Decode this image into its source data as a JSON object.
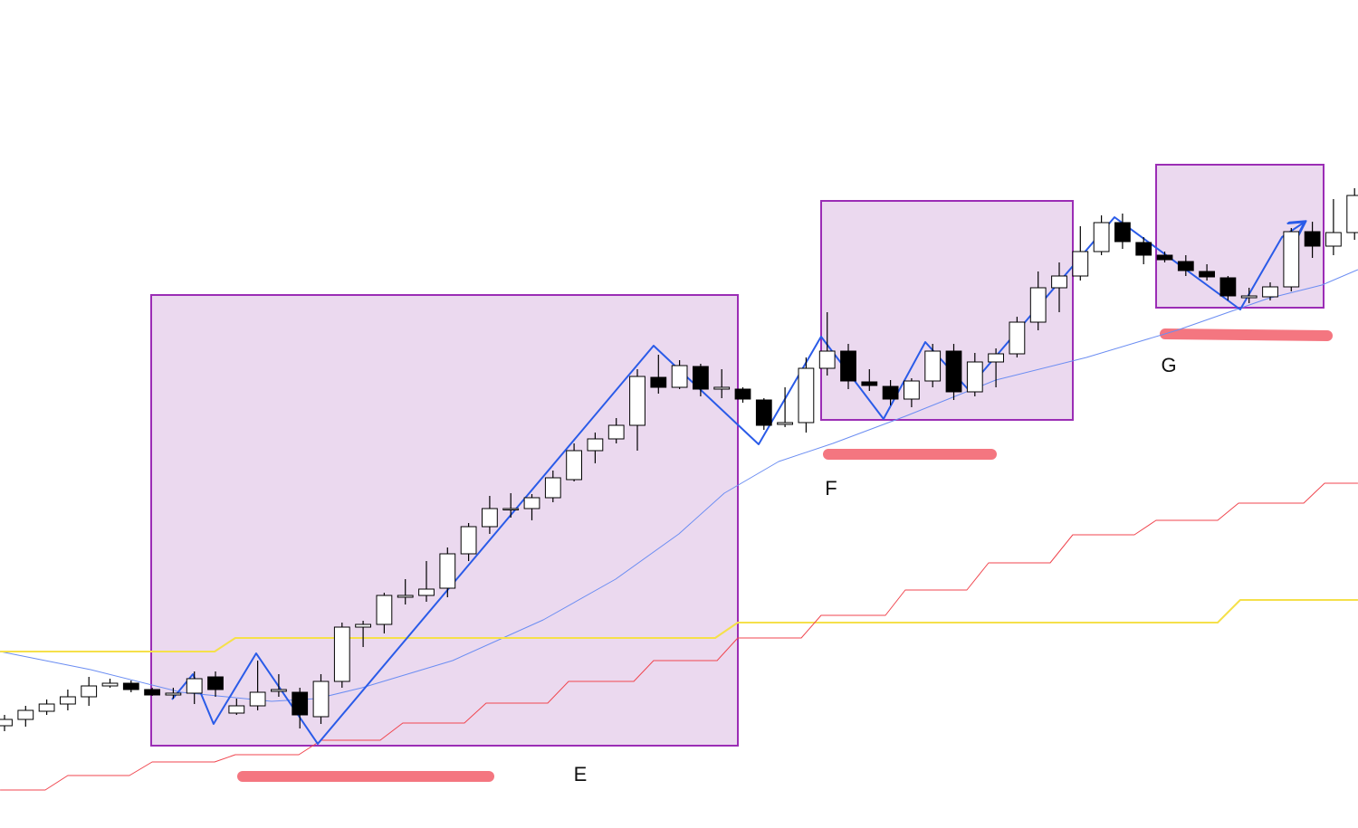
{
  "chart_data": {
    "type": "candlestick",
    "annotations": [
      "E",
      "F",
      "G"
    ],
    "xlim": [
      -0.2146,
      64.163
    ],
    "ylim": [
      0,
      915
    ],
    "up_color": "#ffffff",
    "down_color": "#000000",
    "x": [
      0,
      1,
      2,
      3,
      4,
      5,
      6,
      7,
      8,
      9,
      10,
      11,
      12,
      13,
      14,
      15,
      16,
      17,
      18,
      19,
      20,
      21,
      22,
      23,
      24,
      25,
      26,
      27,
      28,
      29,
      30,
      31,
      32,
      33,
      34,
      35,
      36,
      37,
      38,
      39,
      40,
      41,
      42,
      43,
      44,
      45,
      46,
      47,
      48,
      49,
      50,
      51,
      52,
      53,
      54,
      55,
      56,
      57,
      58,
      59,
      60,
      61,
      62,
      63,
      64
    ],
    "open": [
      113,
      120,
      129,
      137,
      145,
      157,
      160,
      153,
      147,
      149,
      167,
      127,
      135,
      151,
      150,
      123,
      162,
      222,
      225,
      255,
      257,
      265,
      303,
      333,
      352,
      353,
      365,
      385,
      417,
      430,
      445,
      498,
      487,
      510,
      485,
      485,
      473,
      446,
      448,
      508,
      527,
      493,
      488,
      474,
      494,
      527,
      482,
      515,
      524,
      559,
      597,
      610,
      637,
      669,
      647,
      633,
      626,
      615,
      608,
      586,
      587,
      598,
      659,
      643,
      658
    ],
    "high": [
      125,
      135,
      142,
      153,
      167,
      165,
      163,
      155,
      155,
      173,
      173,
      143,
      185,
      170,
      155,
      170,
      227,
      229,
      260,
      275,
      295,
      310,
      337,
      367,
      370,
      369,
      395,
      425,
      437,
      453,
      507,
      523,
      517,
      513,
      507,
      487,
      475,
      487,
      520,
      570,
      535,
      507,
      495,
      497,
      535,
      535,
      525,
      530,
      565,
      615,
      625,
      665,
      677,
      679,
      653,
      637,
      633,
      623,
      610,
      597,
      603,
      663,
      670,
      695,
      707
    ],
    "low": [
      107,
      112,
      125,
      130,
      135,
      155,
      150,
      146,
      143,
      137,
      145,
      125,
      130,
      145,
      110,
      115,
      155,
      200,
      215,
      247,
      250,
      255,
      295,
      325,
      343,
      340,
      360,
      383,
      403,
      425,
      417,
      480,
      485,
      477,
      475,
      470,
      440,
      443,
      437,
      500,
      485,
      483,
      467,
      465,
      487,
      473,
      477,
      487,
      520,
      550,
      570,
      605,
      633,
      640,
      623,
      625,
      610,
      605,
      583,
      580,
      583,
      593,
      630,
      633,
      650
    ],
    "close": [
      120,
      130,
      137,
      145,
      157,
      160,
      153,
      147,
      149,
      165,
      153,
      135,
      150,
      153,
      125,
      162,
      222,
      225,
      257,
      257,
      264,
      303,
      333,
      353,
      353,
      365,
      387,
      417,
      430,
      445,
      499,
      487,
      511,
      485,
      487,
      474,
      445,
      448,
      508,
      527,
      494,
      489,
      474,
      494,
      527,
      482,
      515,
      524,
      559,
      597,
      610,
      637,
      669,
      648,
      633,
      628,
      616,
      609,
      588,
      588,
      598,
      659,
      643,
      658,
      699
    ],
    "lines": [
      {
        "color": "#6b8df2",
        "width": 1,
        "x": [
          -0.21,
          4.08,
          8.37,
          12.66,
          14.81,
          16.95,
          21.24,
          25.54,
          28.97,
          31.97,
          34.12,
          36.7,
          39.27,
          42.7,
          46.99,
          51.29,
          55.58,
          59.87,
          62.45,
          64.16
        ],
        "values": [
          195,
          175,
          150,
          140,
          143,
          155,
          185,
          230,
          275,
          325,
          370,
          405,
          425,
          455,
          495,
          520,
          550,
          585,
          600,
          617
        ]
      },
      {
        "color": "#f5e04a",
        "width": 2,
        "x": [
          -0.21,
          9.96,
          10.94,
          33.69,
          34.76,
          57.51,
          58.58,
          64.16
        ],
        "values": [
          195,
          195,
          210,
          210,
          227,
          227,
          252,
          252
        ]
      },
      {
        "color": "#f0464f",
        "width": 1,
        "x": [
          -0.21,
          1.93,
          3.0,
          5.92,
          7.0,
          9.96,
          10.94,
          13.95,
          15.02,
          17.81,
          18.88,
          21.8,
          22.83,
          25.75,
          26.74,
          29.83,
          30.77,
          33.78,
          34.76,
          37.77,
          38.71,
          41.76,
          42.7,
          45.62,
          46.65,
          49.57,
          50.64,
          53.56,
          54.59,
          57.51,
          58.5,
          61.59,
          62.58,
          64.16
        ],
        "values": [
          42,
          42,
          58,
          58,
          73,
          73,
          81,
          81,
          97,
          97,
          116,
          116,
          138,
          138,
          162,
          162,
          185,
          185,
          210,
          210,
          235,
          235,
          263,
          263,
          293,
          293,
          324,
          324,
          340,
          340,
          359,
          359,
          381,
          381
        ]
      },
      {
        "color": "#2a5be8",
        "width": 2,
        "x": [
          7.94,
          8.93,
          9.91,
          11.93,
          14.85,
          30.77,
          35.75,
          38.71,
          41.67,
          43.65,
          45.67,
          52.62,
          58.58,
          60.56,
          61.59
        ],
        "values": [
          142,
          170,
          115,
          193,
          93,
          533,
          424,
          543,
          452,
          537,
          485,
          675,
          573,
          653,
          669
        ]
      }
    ]
  }
}
